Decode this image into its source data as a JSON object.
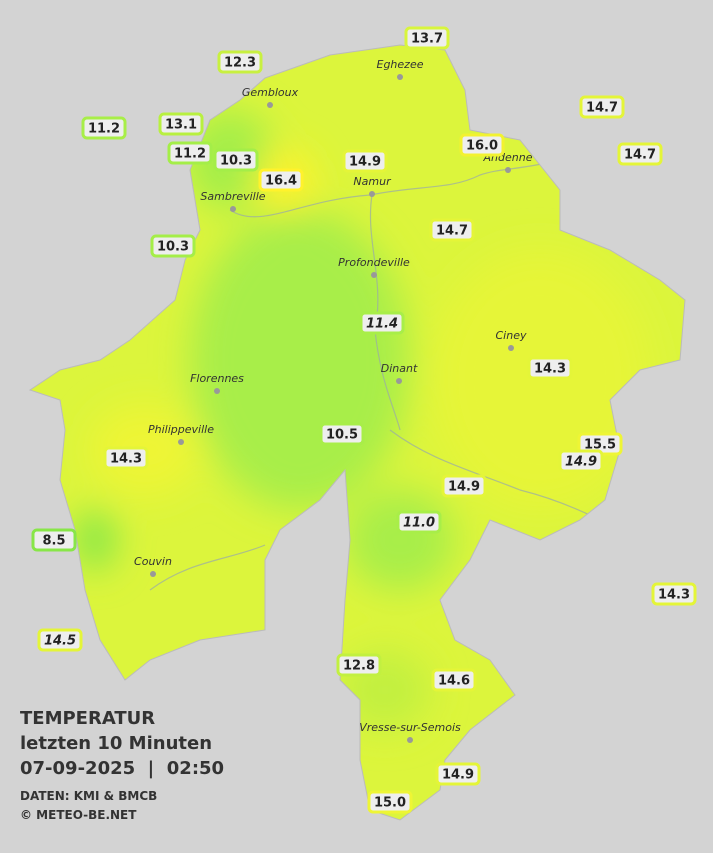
{
  "title": {
    "heading": "TEMPERATUR",
    "period": "letzten 10 Minuten",
    "datetime": "07-09-2025  |  02:50",
    "source": "DATEN: KMI & BMCB",
    "copyright": "© METEO-BE.NET"
  },
  "towns": [
    "Eghezee",
    "Gembloux",
    "Andenne",
    "Namur",
    "Sambreville",
    "Profondeville",
    "Ciney",
    "Dinant",
    "Florennes",
    "Philippeville",
    "Couvin",
    "Vresse-sur-Semois"
  ],
  "stations": [
    "13.7",
    "12.3",
    "14.7",
    "11.2",
    "13.1",
    "16.0",
    "14.7",
    "11.2",
    "10.3",
    "14.9",
    "16.4",
    "14.7",
    "10.3",
    "11.4",
    "14.3",
    "10.5",
    "15.5",
    "14.9",
    "14.3",
    "14.9",
    "11.0",
    "8.5",
    "14.3",
    "14.5",
    "12.8",
    "14.6",
    "14.9",
    "15.0"
  ]
}
